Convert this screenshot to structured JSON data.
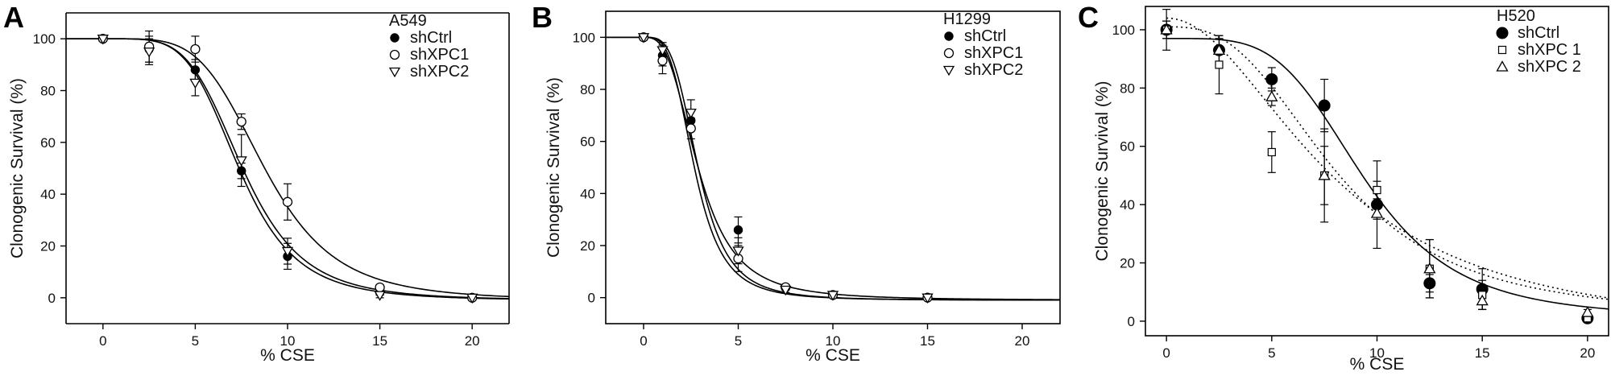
{
  "chart_data": [
    {
      "type": "scatter",
      "panel_label": "A",
      "legend_title": "A549",
      "xlabel": "% CSE",
      "ylabel": "Clonogenic Survival (%)",
      "xlim": [
        -2,
        22
      ],
      "ylim": [
        -10,
        110
      ],
      "xticks": [
        0,
        5,
        10,
        15,
        20
      ],
      "yticks": [
        0,
        20,
        40,
        60,
        80,
        100
      ],
      "legend_position": "top-right",
      "series": [
        {
          "name": "shCtrl",
          "marker": "filled-circle",
          "line": "solid",
          "x": [
            0,
            2.5,
            5,
            7.5,
            10,
            15,
            20
          ],
          "y": [
            100,
            96,
            88,
            49,
            16,
            2,
            0
          ],
          "err": [
            1,
            5,
            4,
            3,
            5,
            1,
            0.5
          ],
          "fit": {
            "ec50": 7.4,
            "hill": 4.8
          }
        },
        {
          "name": "shXPC1",
          "marker": "open-circle",
          "line": "solid",
          "x": [
            0,
            2.5,
            5,
            7.5,
            10,
            15,
            20
          ],
          "y": [
            100,
            97,
            96,
            68,
            37,
            4,
            0
          ],
          "err": [
            1,
            6,
            5,
            3,
            7,
            1,
            0.5
          ],
          "fit": {
            "ec50": 8.8,
            "hill": 4.6
          }
        },
        {
          "name": "shXPC2",
          "marker": "open-triangle-down",
          "line": "solid",
          "x": [
            0,
            2.5,
            5,
            7.5,
            10,
            15,
            20
          ],
          "y": [
            100,
            95,
            83,
            53,
            18,
            1,
            0
          ],
          "err": [
            1,
            5,
            5,
            10,
            5,
            1,
            0.5
          ],
          "fit": {
            "ec50": 7.6,
            "hill": 4.7
          }
        }
      ]
    },
    {
      "type": "scatter",
      "panel_label": "B",
      "legend_title": "H1299",
      "xlabel": "% CSE",
      "ylabel": "Clonogenic Survival (%)",
      "xlim": [
        -2,
        22
      ],
      "ylim": [
        -10,
        110
      ],
      "xticks": [
        0,
        5,
        10,
        15,
        20
      ],
      "yticks": [
        0,
        20,
        40,
        60,
        80,
        100
      ],
      "legend_position": "top-right",
      "series": [
        {
          "name": "shCtrl",
          "marker": "filled-circle",
          "line": "solid",
          "x": [
            0,
            1,
            2.5,
            5,
            7.5,
            10,
            15
          ],
          "y": [
            100,
            93,
            68,
            26,
            4,
            1,
            0
          ],
          "err": [
            1,
            4,
            4,
            5,
            1,
            0.5,
            0.5
          ],
          "fit": {
            "ec50": 2.9,
            "hill": 3.0
          }
        },
        {
          "name": "shXPC1",
          "marker": "open-circle",
          "line": "solid",
          "x": [
            0,
            1,
            2.5,
            5,
            7.5,
            10,
            15
          ],
          "y": [
            100,
            91,
            65,
            15,
            4,
            1,
            0
          ],
          "err": [
            1,
            5,
            4,
            5,
            1,
            0.5,
            0.5
          ],
          "fit": {
            "ec50": 2.7,
            "hill": 3.6
          }
        },
        {
          "name": "shXPC2",
          "marker": "open-triangle-down",
          "line": "solid",
          "x": [
            0,
            1,
            2.5,
            5,
            7.5,
            10,
            15
          ],
          "y": [
            100,
            95,
            71,
            18,
            3,
            1,
            0
          ],
          "err": [
            1,
            3,
            5,
            5,
            1,
            0.5,
            0.5
          ],
          "fit": {
            "ec50": 2.9,
            "hill": 3.7
          }
        }
      ]
    },
    {
      "type": "scatter",
      "panel_label": "C",
      "legend_title": "H520",
      "xlabel": "% CSE",
      "ylabel": "Clonogenic Survival (%)",
      "xlim": [
        -1,
        21
      ],
      "ylim": [
        -5,
        108
      ],
      "xticks": [
        0,
        5,
        10,
        15,
        20
      ],
      "yticks": [
        0,
        20,
        40,
        60,
        80,
        100
      ],
      "legend_position": "top-right",
      "series": [
        {
          "name": "shCtrl",
          "marker": "filled-circle-large",
          "line": "solid",
          "x": [
            0,
            2.5,
            5,
            7.5,
            10,
            12.5,
            15,
            20
          ],
          "y": [
            100,
            93,
            83,
            74,
            40,
            13,
            11,
            1
          ],
          "err": [
            7,
            4,
            4,
            9,
            15,
            3,
            7,
            1
          ],
          "fit": {
            "ec50": 9.4,
            "hill": 4.2,
            "top": 97,
            "bottom": 1
          }
        },
        {
          "name": "shXPC 1",
          "marker": "open-square",
          "line": "dotted",
          "x": [
            0,
            2.5,
            5,
            7.5,
            10,
            12.5,
            15,
            20
          ],
          "y": [
            100,
            88,
            58,
            50,
            45,
            18,
            9,
            1
          ],
          "err": [
            3,
            10,
            7,
            10,
            3,
            10,
            5,
            1
          ],
          "fit": {
            "ec50": 8.0,
            "hill": 2.0,
            "top": 104,
            "bottom": -6
          }
        },
        {
          "name": "shXPC 2",
          "marker": "open-triangle-up",
          "line": "dotted",
          "x": [
            0,
            2.5,
            5,
            7.5,
            10,
            12.5,
            15,
            20
          ],
          "y": [
            100,
            93,
            77,
            50,
            37,
            18,
            7,
            3
          ],
          "err": [
            3,
            5,
            3,
            16,
            2,
            10,
            3,
            1
          ],
          "fit": {
            "ec50": 8.1,
            "hill": 2.8,
            "top": 101,
            "bottom": 1
          }
        }
      ]
    }
  ]
}
